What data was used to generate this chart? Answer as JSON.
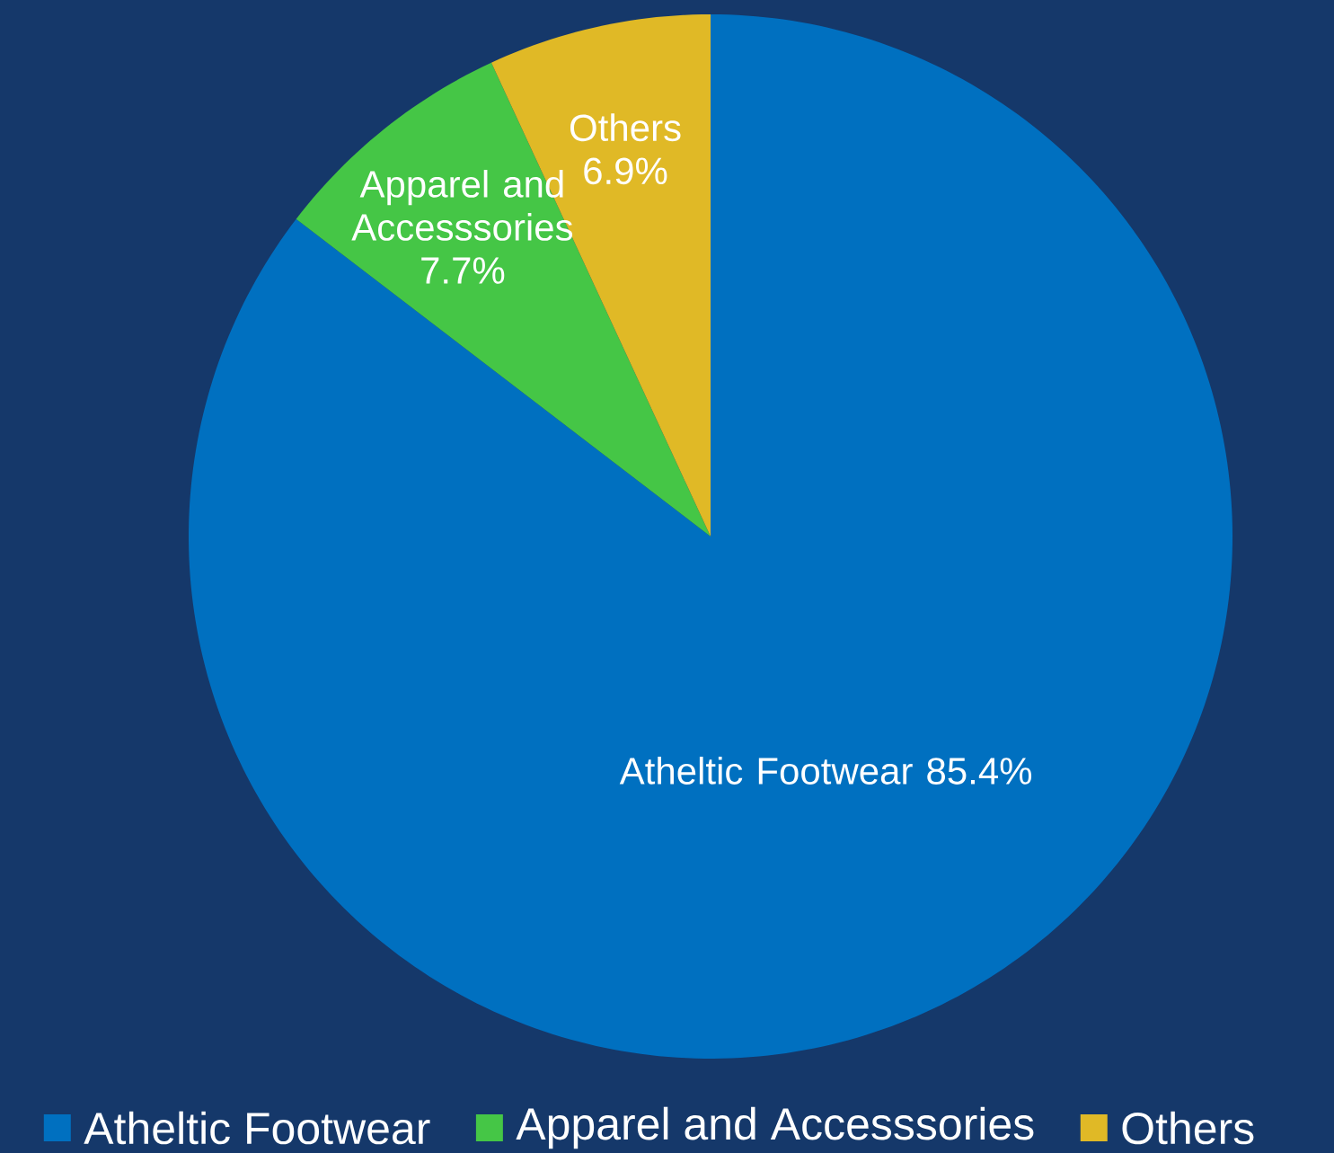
{
  "chart_data": {
    "type": "pie",
    "categories": [
      "Atheltic Footwear",
      "Apparel and Accesssories",
      "Others"
    ],
    "values": [
      85.4,
      7.7,
      6.9
    ],
    "value_labels": [
      "85.4%",
      "7.7%",
      "6.9%"
    ],
    "colors": [
      "#0070c0",
      "#45c646",
      "#e0b926"
    ],
    "legend": "bottom"
  }
}
